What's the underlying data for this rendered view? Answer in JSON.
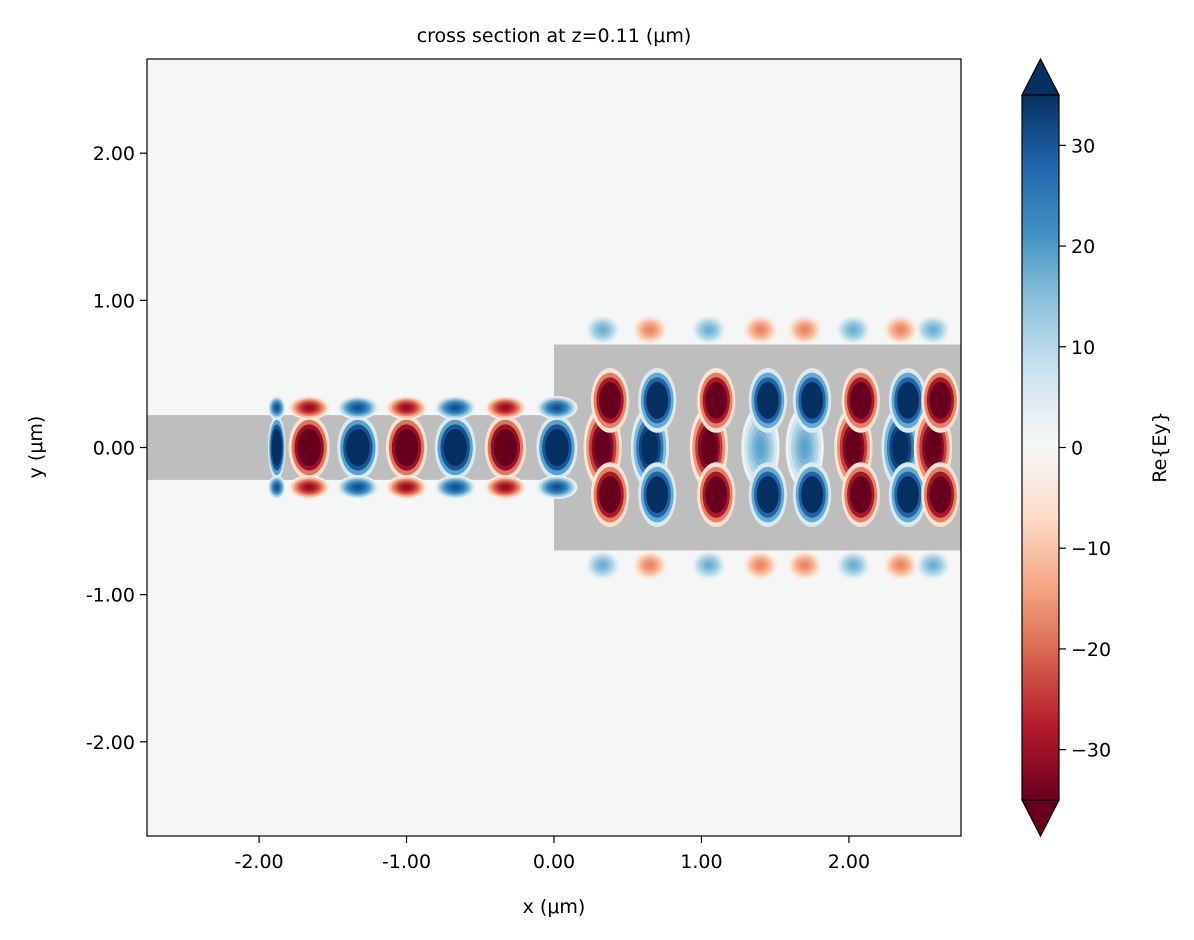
{
  "chart_data": {
    "type": "heatmap",
    "title": "cross section at z=0.11 (μm)",
    "xlabel": "x (μm)",
    "ylabel": "y (μm)",
    "xlim": [
      -2.76,
      2.76
    ],
    "ylim": [
      -2.64,
      2.64
    ],
    "x_ticks": [
      -2.0,
      -1.0,
      0.0,
      1.0,
      2.0
    ],
    "x_tick_labels": [
      "-2.00",
      "-1.00",
      "0.00",
      "1.00",
      "2.00"
    ],
    "y_ticks": [
      -2.0,
      -1.0,
      0.0,
      1.0,
      2.0
    ],
    "y_tick_labels": [
      "-2.00",
      "-1.00",
      "0.00",
      "1.00",
      "2.00"
    ],
    "grid": false,
    "colorbar": {
      "label": "Re{Ey}",
      "colormap": "RdBu",
      "vmin": -35,
      "vmax": 35,
      "extend": "both",
      "ticks": [
        30,
        20,
        10,
        0,
        -10,
        -20,
        -30
      ],
      "tick_labels": [
        "30",
        "20",
        "10",
        "0",
        "−10",
        "−20",
        "−30"
      ]
    },
    "structures": [
      {
        "name": "input waveguide",
        "x": [
          -2.76,
          0.0
        ],
        "y": [
          -0.22,
          0.22
        ],
        "color": "#bebebe"
      },
      {
        "name": "output waveguide",
        "x": [
          0.0,
          2.76
        ],
        "y": [
          -0.7,
          0.7
        ],
        "color": "#bebebe"
      }
    ],
    "field": {
      "input_source_start_x": -2.0,
      "input_period_um": 0.66,
      "input_peak_x": [
        -1.88,
        -1.66,
        -1.33,
        -1.0,
        -0.67,
        -0.33,
        0.02
      ],
      "input_peak_sign": [
        1,
        -1,
        1,
        -1,
        1,
        -1,
        1
      ],
      "output_peak_x": [
        0.33,
        0.65,
        1.05,
        1.4,
        1.7,
        2.03,
        2.35,
        2.57
      ],
      "output_peak_sign": [
        -1,
        1,
        -1,
        1,
        1,
        -1,
        1,
        -1
      ],
      "amplitude": 35
    }
  }
}
